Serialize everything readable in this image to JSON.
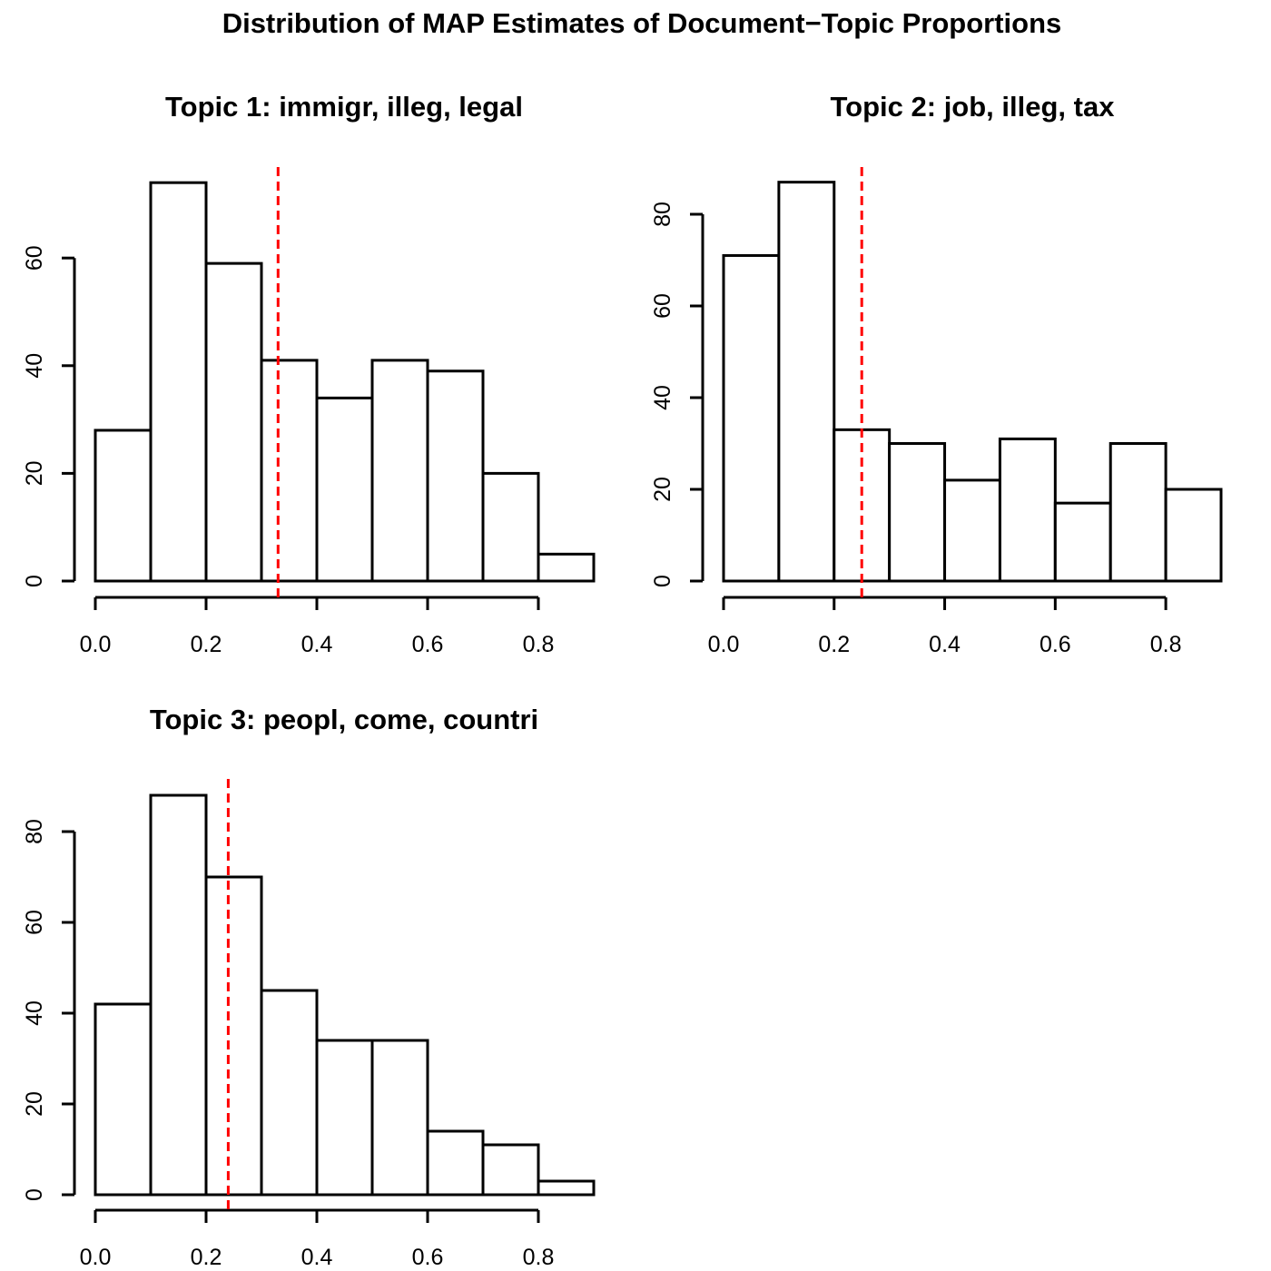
{
  "title": "Distribution of MAP Estimates of Document−Topic Proportions",
  "colors": {
    "bar_fill": "#ffffff",
    "bar_stroke": "#000000",
    "reference_line": "#ff0000"
  },
  "chart_data": [
    {
      "type": "bar",
      "title": "Topic 1: immigr, illeg, legal",
      "xlabel": "",
      "ylabel": "",
      "bin_edges": [
        0.0,
        0.1,
        0.2,
        0.3,
        0.4,
        0.5,
        0.6,
        0.7,
        0.8,
        0.9
      ],
      "values": [
        28,
        74,
        59,
        41,
        34,
        41,
        39,
        20,
        5
      ],
      "x_ticks": [
        "0.0",
        "0.2",
        "0.4",
        "0.6",
        "0.8"
      ],
      "y_ticks": [
        "0",
        "20",
        "40",
        "60"
      ],
      "reference_line_x": 0.33,
      "grid": false
    },
    {
      "type": "bar",
      "title": "Topic 2: job, illeg, tax",
      "xlabel": "",
      "ylabel": "",
      "bin_edges": [
        0.0,
        0.1,
        0.2,
        0.3,
        0.4,
        0.5,
        0.6,
        0.7,
        0.8,
        0.9
      ],
      "values": [
        71,
        87,
        33,
        30,
        22,
        31,
        17,
        30,
        20
      ],
      "x_ticks": [
        "0.0",
        "0.2",
        "0.4",
        "0.6",
        "0.8"
      ],
      "y_ticks": [
        "0",
        "20",
        "40",
        "60",
        "80"
      ],
      "reference_line_x": 0.25,
      "grid": false
    },
    {
      "type": "bar",
      "title": "Topic 3: peopl, come, countri",
      "xlabel": "",
      "ylabel": "",
      "bin_edges": [
        0.0,
        0.1,
        0.2,
        0.3,
        0.4,
        0.5,
        0.6,
        0.7,
        0.8,
        0.9
      ],
      "values": [
        42,
        88,
        70,
        45,
        34,
        34,
        14,
        11,
        3
      ],
      "x_ticks": [
        "0.0",
        "0.2",
        "0.4",
        "0.6",
        "0.8"
      ],
      "y_ticks": [
        "0",
        "20",
        "40",
        "60",
        "80"
      ],
      "reference_line_x": 0.24,
      "grid": false
    }
  ]
}
